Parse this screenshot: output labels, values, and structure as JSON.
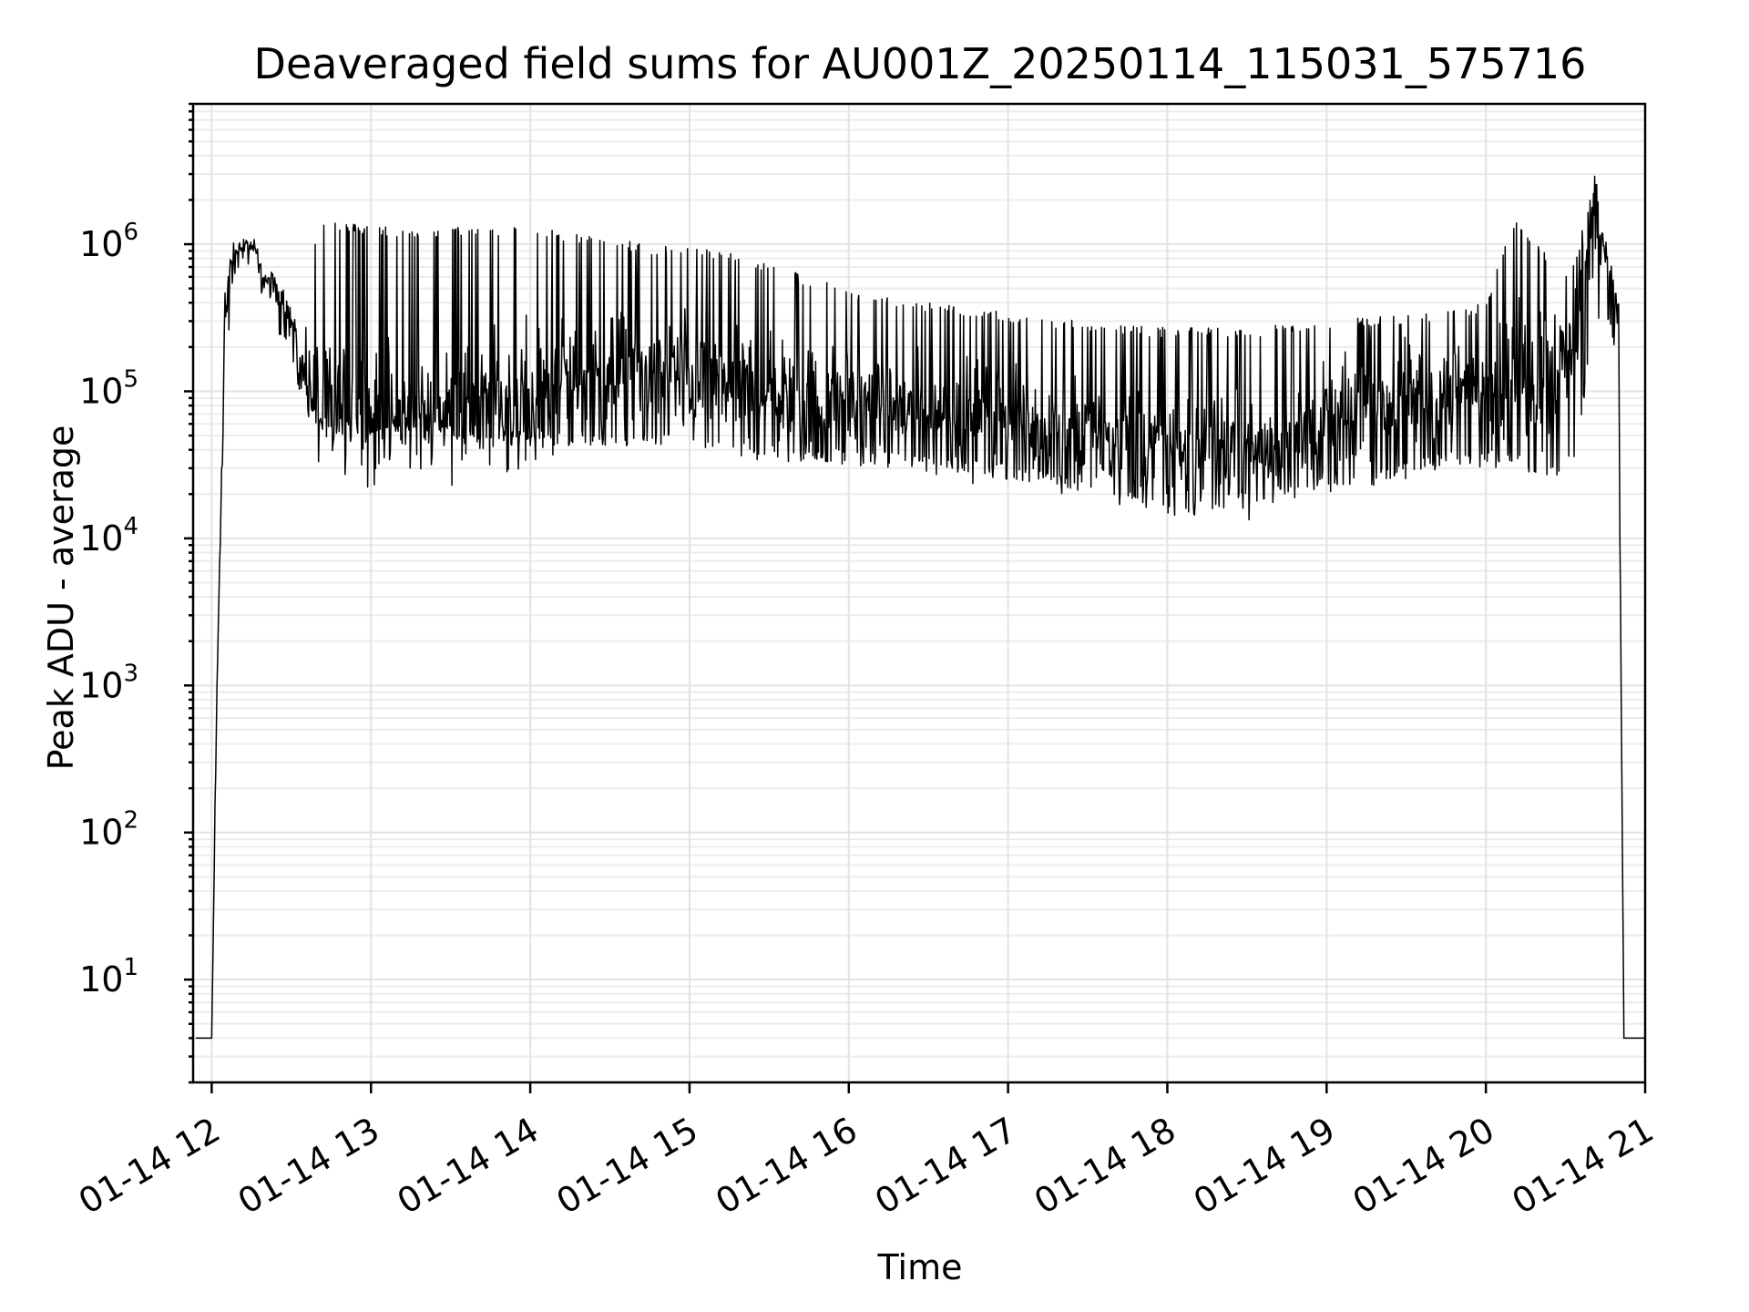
{
  "chart_data": {
    "type": "line",
    "title": "Deaveraged field sums for AU001Z_20250114_115031_575716",
    "xlabel": "Time",
    "ylabel": "Peak ADU - average",
    "yscale": "log",
    "ylim": [
      2,
      9000000
    ],
    "xlim": [
      "2025-01-14 11:53",
      "2025-01-14 21:00"
    ],
    "grid": true,
    "x_ticks": [
      "01-14 12",
      "01-14 13",
      "01-14 14",
      "01-14 15",
      "01-14 16",
      "01-14 17",
      "01-14 18",
      "01-14 19",
      "01-14 20",
      "01-14 21"
    ],
    "y_ticks": [
      {
        "base": "10",
        "exp": "1"
      },
      {
        "base": "10",
        "exp": "2"
      },
      {
        "base": "10",
        "exp": "3"
      },
      {
        "base": "10",
        "exp": "4"
      },
      {
        "base": "10",
        "exp": "5"
      },
      {
        "base": "10",
        "exp": "6"
      }
    ],
    "series": [
      {
        "color": "#000000",
        "x": [
          "11:54",
          "11:58",
          "12:00",
          "12:02",
          "12:05",
          "12:08",
          "12:12",
          "12:16",
          "12:20",
          "12:25",
          "12:30",
          "12:35",
          "12:40",
          "12:45",
          "12:50",
          "13:00",
          "13:15",
          "13:30",
          "13:45",
          "14:00",
          "14:15",
          "14:30",
          "14:45",
          "15:00",
          "15:15",
          "15:30",
          "15:45",
          "16:00",
          "16:15",
          "16:30",
          "16:45",
          "17:00",
          "17:15",
          "17:30",
          "17:45",
          "18:00",
          "18:15",
          "18:30",
          "18:45",
          "19:00",
          "19:15",
          "19:30",
          "19:45",
          "20:00",
          "20:10",
          "20:20",
          "20:30",
          "20:35",
          "20:40",
          "20:45",
          "20:48",
          "20:50",
          "20:52",
          "20:55",
          "21:00"
        ],
        "y": [
          4,
          4,
          4,
          1000,
          300000,
          800000,
          1050000,
          900000,
          600000,
          450000,
          300000,
          130000,
          80000,
          70000,
          75000,
          70000,
          65000,
          75000,
          80000,
          100000,
          120000,
          130000,
          130000,
          120000,
          110000,
          100000,
          90000,
          85000,
          80000,
          70000,
          65000,
          70000,
          60000,
          50000,
          45000,
          40000,
          40000,
          40000,
          45000,
          60000,
          80000,
          90000,
          100000,
          110000,
          120000,
          140000,
          170000,
          300000,
          1500000,
          900000,
          600000,
          200000,
          4,
          4,
          4
        ],
        "envelope_upper": [
          4,
          4,
          4,
          1000,
          500000,
          1000000,
          1100000,
          1000000,
          700000,
          600000,
          400000,
          250000,
          1500000,
          1500000,
          1400000,
          1350000,
          1300000,
          1300000,
          1350000,
          1300000,
          1200000,
          1100000,
          1000000,
          950000,
          900000,
          750000,
          600000,
          500000,
          450000,
          400000,
          380000,
          340000,
          320000,
          300000,
          280000,
          270000,
          270000,
          270000,
          290000,
          310000,
          320000,
          330000,
          350000,
          400000,
          1500000,
          1000000,
          600000,
          900000,
          4500000,
          900000,
          600000,
          400000,
          4,
          4,
          4
        ],
        "envelope_lower": [
          4,
          4,
          4,
          1000,
          100000,
          500000,
          800000,
          600000,
          400000,
          250000,
          150000,
          80000,
          55000,
          55000,
          50000,
          45000,
          45000,
          50000,
          45000,
          40000,
          40000,
          40000,
          40000,
          38000,
          35000,
          33000,
          30000,
          30000,
          30000,
          28000,
          26000,
          25000,
          22000,
          19000,
          16000,
          14000,
          15000,
          16000,
          18000,
          20000,
          22000,
          25000,
          30000,
          30000,
          30000,
          25000,
          25000,
          40000,
          300000,
          300000,
          200000,
          100000,
          4,
          4,
          4
        ]
      }
    ]
  }
}
